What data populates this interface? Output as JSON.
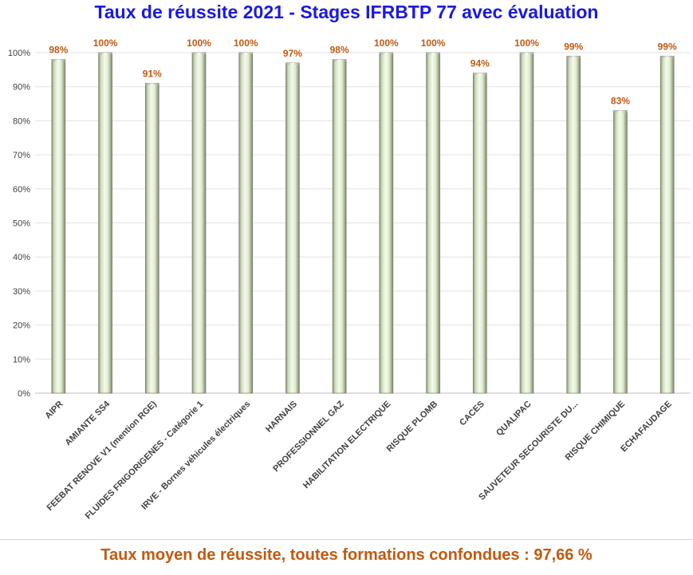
{
  "chart_data": {
    "type": "bar",
    "title": "Taux de réussite 2021 - Stages IFRBTP 77 avec évaluation",
    "categories": [
      "AIPR",
      "AMIANTE SS4",
      "FEEBAT RENOVE V1 (mention RGE)",
      "FLUIDES FRIGORIGENES - Catégorie 1",
      "IRVE - Bornes véhicules électriques",
      "HARNAIS",
      "PROFESSIONNEL GAZ",
      "HABILITATION ELECTRIQUE",
      "RISQUE PLOMB",
      "CACES",
      "QUALIPAC",
      "SAUVETEUR SECOURISTE DU...",
      "RISQUE CHIMIQUE",
      "ECHAFAUDAGE"
    ],
    "values": [
      98,
      100,
      91,
      100,
      100,
      97,
      98,
      100,
      100,
      94,
      100,
      99,
      83,
      99
    ],
    "data_labels": [
      "98%",
      "100%",
      "91%",
      "100%",
      "100%",
      "97%",
      "98%",
      "100%",
      "100%",
      "94%",
      "100%",
      "99%",
      "83%",
      "99%"
    ],
    "y_ticks": [
      0,
      10,
      20,
      30,
      40,
      50,
      60,
      70,
      80,
      90,
      100
    ],
    "y_tick_labels": [
      "0%",
      "10%",
      "20%",
      "30%",
      "40%",
      "50%",
      "60%",
      "70%",
      "80%",
      "90%",
      "100%"
    ],
    "ylim": [
      0,
      100
    ],
    "grid": true,
    "bar_color": "#e6f2d8",
    "bar_edge_color": "#6e7560",
    "label_color": "#c05a11",
    "title_color": "#1a1adf"
  },
  "footer": {
    "text": "Taux moyen de réussite, toutes formations confondues : 97,66 %"
  }
}
